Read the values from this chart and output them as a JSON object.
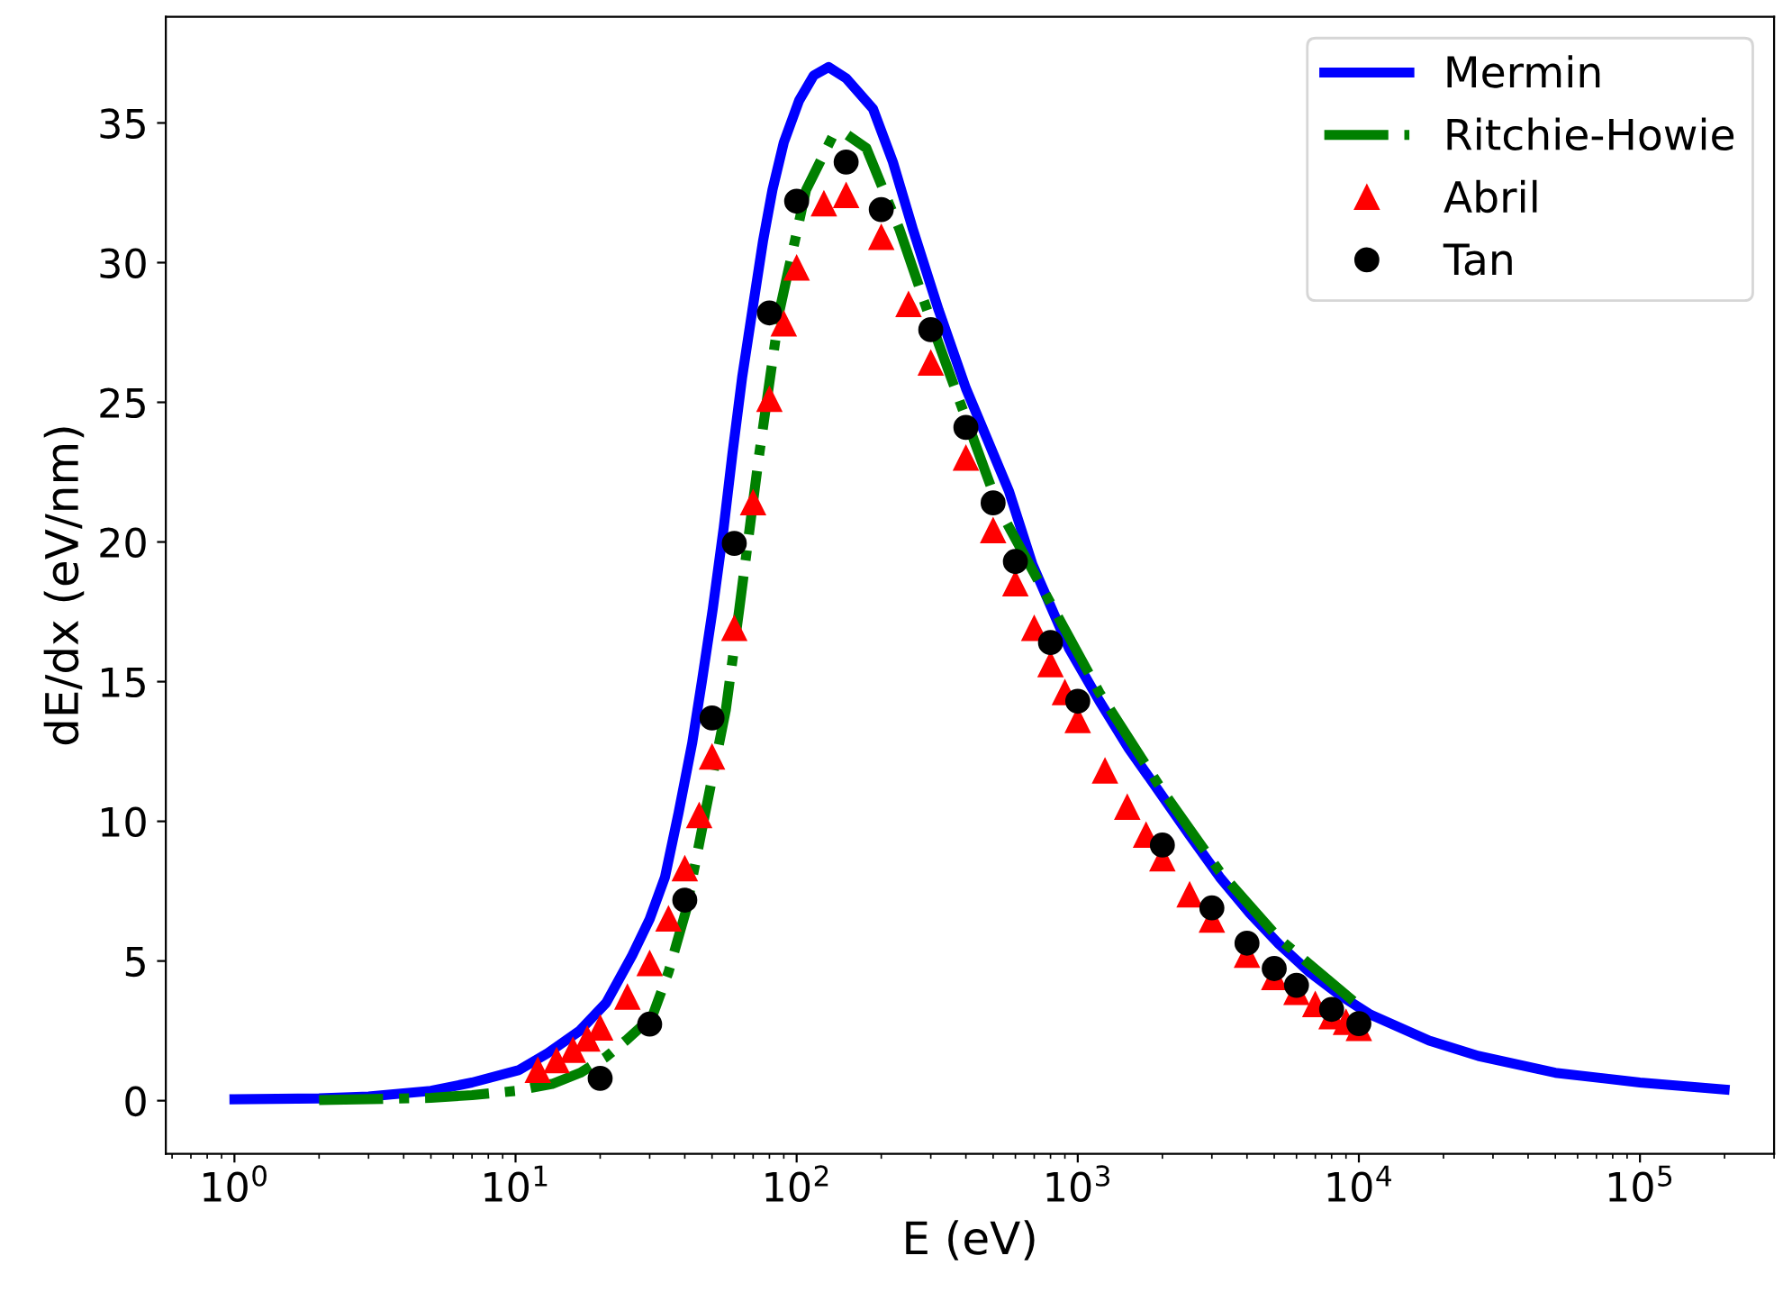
{
  "chart_data": {
    "type": "line",
    "xlabel": "E (eV)",
    "ylabel": "dE/dx (eV/nm)",
    "log": "x",
    "grid": false,
    "legend": "top right",
    "xlim": [
      0.57,
      300000
    ],
    "ylim": [
      -1.9,
      38.8
    ],
    "xticks": [
      {
        "value": 1,
        "label": "10$^{0}$"
      },
      {
        "value": 10,
        "label": "10$^{1}$"
      },
      {
        "value": 100,
        "label": "10$^{2}$"
      },
      {
        "value": 1000,
        "label": "10$^{3}$"
      },
      {
        "value": 10000,
        "label": "10$^{4}$"
      },
      {
        "value": 100000,
        "label": "10$^{5}$"
      }
    ],
    "yticks": [
      0,
      5,
      10,
      15,
      20,
      25,
      30,
      35
    ],
    "series": [
      {
        "name": "Mermin",
        "color": "#0000ff",
        "line_style": "solid",
        "marker": "none",
        "x": [
          1,
          2,
          3,
          5,
          7,
          10.3,
          13,
          16.9,
          21,
          26,
          30,
          34,
          38,
          42.5,
          46,
          50.3,
          55,
          59,
          64,
          69.6,
          76,
          82,
          90,
          102,
          115,
          130,
          150,
          187,
          220,
          259,
          320,
          400,
          480,
          570,
          690,
          930,
          1195,
          1520,
          2000,
          2500,
          3200,
          4100,
          5200,
          6680,
          8500,
          10900,
          17800,
          26600,
          50000,
          100000,
          200000
        ],
        "values": [
          0.05,
          0.08,
          0.15,
          0.35,
          0.65,
          1.1,
          1.7,
          2.5,
          3.5,
          5.2,
          6.5,
          8.0,
          10.3,
          12.8,
          15.0,
          17.6,
          20.5,
          23.1,
          25.9,
          28.3,
          30.8,
          32.6,
          34.3,
          35.8,
          36.7,
          37.0,
          36.6,
          35.5,
          33.6,
          31.2,
          28.3,
          25.5,
          23.6,
          21.8,
          19.2,
          16.2,
          14.3,
          12.6,
          10.9,
          9.5,
          8.0,
          6.7,
          5.6,
          4.6,
          3.8,
          3.1,
          2.15,
          1.6,
          1.0,
          0.65,
          0.4
        ]
      },
      {
        "name": "Ritchie-Howie",
        "color": "#008000",
        "line_style": "dashdot",
        "marker": "none",
        "x": [
          2,
          5,
          7,
          10,
          13.5,
          17,
          20.9,
          25,
          30.6,
          35,
          40.4,
          47.5,
          56,
          62.5,
          73.5,
          87,
          108,
          134,
          150,
          177,
          232,
          320,
          524,
          1195,
          2000,
          3200,
          5200,
          10000
        ],
        "values": [
          0.02,
          0.1,
          0.2,
          0.35,
          0.6,
          1.0,
          1.55,
          2.2,
          3.0,
          4.6,
          6.8,
          10.4,
          14.0,
          17.6,
          23.1,
          28.3,
          32.6,
          34.5,
          34.6,
          34.1,
          31.2,
          27.1,
          21.2,
          14.6,
          11.1,
          8.2,
          5.8,
          3.4
        ]
      },
      {
        "name": "Abril",
        "type": "scatter",
        "color": "#ff0000",
        "marker": "triangle",
        "x": [
          12,
          14,
          16,
          18,
          20,
          25,
          30,
          35,
          40,
          45,
          50,
          60,
          70,
          80,
          90,
          100,
          125,
          150,
          200,
          250,
          300,
          400,
          500,
          600,
          700,
          800,
          900,
          1000,
          1250,
          1500,
          1750,
          2000,
          2500,
          3000,
          4000,
          5000,
          6000,
          7000,
          8000,
          9000,
          10000
        ],
        "values": [
          1.08,
          1.43,
          1.8,
          2.2,
          2.6,
          3.7,
          4.9,
          6.5,
          8.3,
          10.2,
          12.3,
          16.9,
          21.4,
          25.1,
          27.8,
          29.8,
          32.1,
          32.4,
          30.9,
          28.5,
          26.4,
          23.0,
          20.4,
          18.5,
          16.9,
          15.6,
          14.6,
          13.6,
          11.8,
          10.5,
          9.5,
          8.65,
          7.36,
          6.46,
          5.2,
          4.4,
          3.87,
          3.44,
          3.0,
          2.8,
          2.58
        ]
      },
      {
        "name": "Tan",
        "type": "scatter",
        "color": "#000000",
        "marker": "circle",
        "x": [
          20,
          30,
          40,
          50,
          60,
          80,
          100,
          150,
          200,
          300,
          400,
          500,
          600,
          800,
          1000,
          2000,
          3000,
          4000,
          5000,
          6000,
          8000,
          10000
        ],
        "values": [
          0.8,
          2.74,
          7.18,
          13.7,
          19.95,
          28.2,
          32.2,
          33.6,
          31.9,
          27.6,
          24.1,
          21.4,
          19.3,
          16.4,
          14.3,
          9.15,
          6.9,
          5.64,
          4.73,
          4.13,
          3.27,
          2.76
        ]
      }
    ]
  }
}
